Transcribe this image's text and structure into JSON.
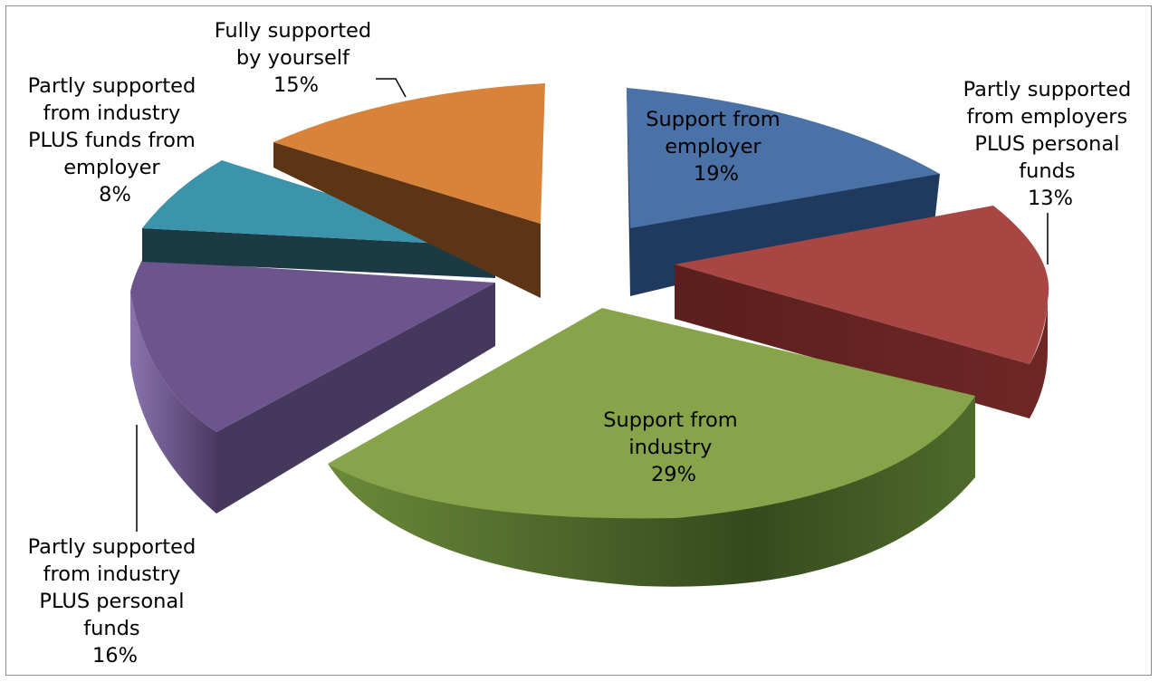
{
  "chart_data": {
    "type": "pie",
    "title": "",
    "slices": [
      {
        "name": "Support from employer",
        "value": 19,
        "value_label": "19%",
        "label_lines": [
          "Support from",
          "employer"
        ],
        "color": "#4a72a6",
        "label_placement": "inside"
      },
      {
        "name": "Partly supported from employers PLUS personal funds",
        "value": 13,
        "value_label": "13%",
        "label_lines": [
          "Partly supported",
          "from employers",
          "PLUS personal",
          "funds"
        ],
        "color": "#a84644",
        "label_placement": "outside-right"
      },
      {
        "name": "Support from industry",
        "value": 29,
        "value_label": "29%",
        "label_lines": [
          "Support from",
          "industry"
        ],
        "color": "#87a44b",
        "label_placement": "inside"
      },
      {
        "name": "Partly supported from industry PLUS personal funds",
        "value": 16,
        "value_label": "16%",
        "label_lines": [
          "Partly supported",
          "from industry",
          "PLUS personal",
          "funds"
        ],
        "color": "#6c558d",
        "label_placement": "outside-bottom-left"
      },
      {
        "name": "Partly supported from industry PLUS funds from employer",
        "value": 8,
        "value_label": "8%",
        "label_lines": [
          "Partly supported",
          "from industry",
          "PLUS funds from",
          "employer"
        ],
        "color": "#3b94ac",
        "label_placement": "outside-left"
      },
      {
        "name": "Fully supported by yourself",
        "value": 15,
        "value_label": "15%",
        "label_lines": [
          "Fully supported",
          "by yourself"
        ],
        "color": "#d9823a",
        "label_placement": "outside-top"
      }
    ],
    "style": "3d-exploded-pie",
    "legend": "none",
    "grid": false
  }
}
